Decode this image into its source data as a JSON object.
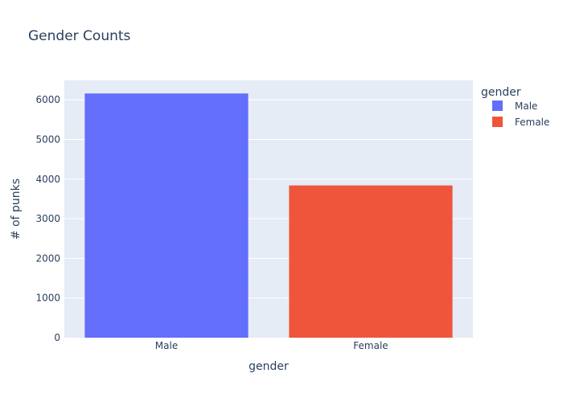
{
  "chart_data": {
    "type": "bar",
    "title": "Gender Counts",
    "xlabel": "gender",
    "ylabel": "# of punks",
    "categories": [
      "Male",
      "Female"
    ],
    "series": [
      {
        "name": "Male",
        "values": [
          6160,
          null
        ],
        "color": "#636efa"
      },
      {
        "name": "Female",
        "values": [
          null,
          3840
        ],
        "color": "#ef553b"
      }
    ],
    "ylim": [
      0,
      6490
    ],
    "yticks": [
      0,
      1000,
      2000,
      3000,
      4000,
      5000,
      6000
    ],
    "grid": true,
    "legend": {
      "title": "gender",
      "placement": "right",
      "entries": [
        {
          "label": "Male",
          "color": "#636efa"
        },
        {
          "label": "Female",
          "color": "#ef553b"
        }
      ]
    },
    "colors": {
      "plot_background": "#e5ecf6",
      "gridline": "#ffffff",
      "text": "#2a3f5f"
    }
  }
}
